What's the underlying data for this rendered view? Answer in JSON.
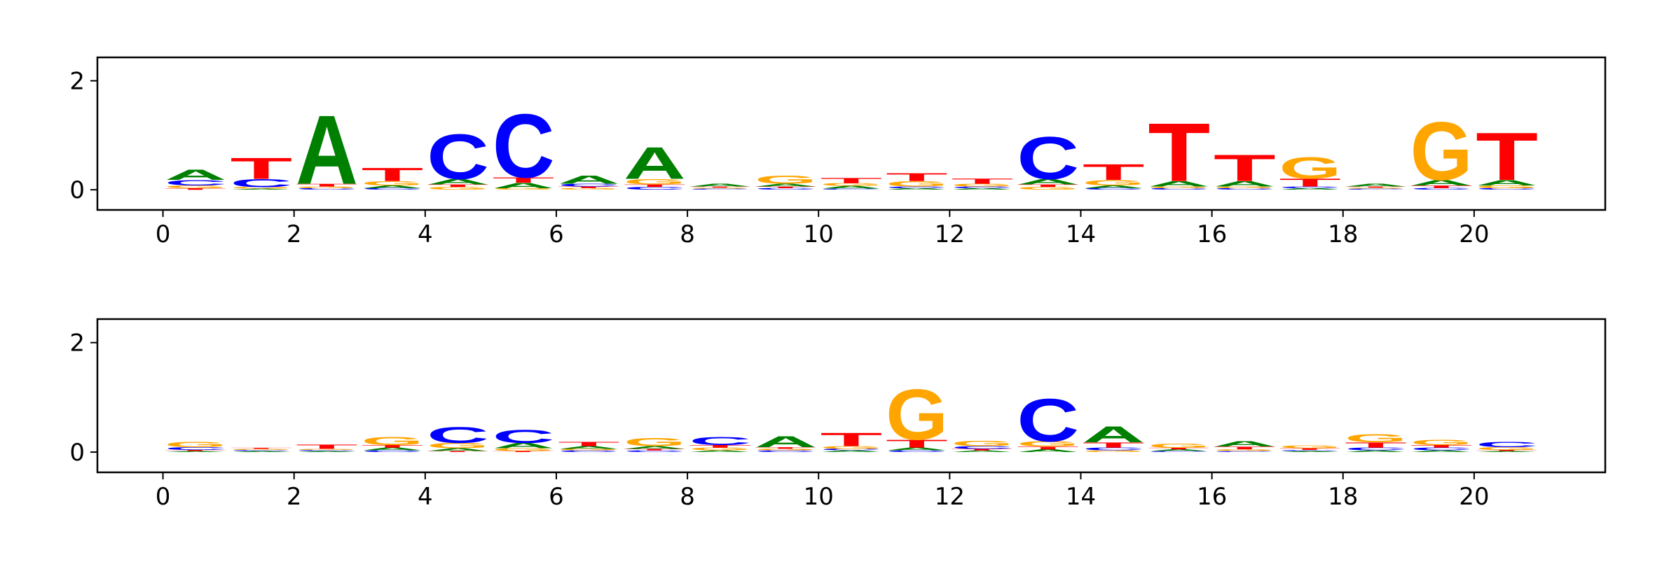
{
  "chart_data": [
    {
      "type": "logo",
      "x": [
        0.5,
        1.5,
        2.5,
        3.5,
        4.5,
        5.5,
        6.5,
        7.5,
        8.5,
        9.5,
        10.5,
        11.5,
        12.5,
        13.5,
        14.5,
        15.5,
        16.5,
        17.5,
        18.5,
        19.5,
        20.5
      ],
      "xlim": [
        -1,
        22
      ],
      "xticks": [
        0,
        2,
        4,
        6,
        8,
        10,
        12,
        14,
        16,
        18,
        20
      ],
      "ylim": [
        -0.37,
        2.43
      ],
      "yticks": [
        0,
        2
      ],
      "series": [
        {
          "name": "A",
          "color": "#008000",
          "values": [
            0.2,
            0.02,
            1.3,
            0.05,
            0.1,
            0.1,
            0.15,
            0.6,
            0.05,
            0.05,
            0.05,
            0.03,
            0.03,
            0.1,
            0.05,
            0.1,
            0.1,
            0.03,
            0.05,
            0.1,
            0.1
          ]
        },
        {
          "name": "C",
          "color": "#0000ff",
          "values": [
            0.1,
            0.15,
            0.03,
            0.03,
            0.85,
            1.2,
            0.05,
            0.05,
            0.02,
            0.03,
            0.02,
            0.03,
            0.03,
            0.8,
            0.03,
            0.03,
            0.03,
            0.03,
            0.02,
            0.03,
            0.03
          ]
        },
        {
          "name": "G",
          "color": "#ffa500",
          "values": [
            0.05,
            0.03,
            0.03,
            0.08,
            0.05,
            0.03,
            0.03,
            0.1,
            0.02,
            0.15,
            0.05,
            0.1,
            0.05,
            0.05,
            0.1,
            0.03,
            0.03,
            0.4,
            0.02,
            1.1,
            0.05
          ]
        },
        {
          "name": "T",
          "color": "#ff0000",
          "values": [
            0.03,
            0.4,
            0.05,
            0.25,
            0.05,
            0.1,
            0.03,
            0.05,
            0.02,
            0.03,
            0.1,
            0.15,
            0.1,
            0.05,
            0.3,
            1.1,
            0.5,
            0.15,
            0.02,
            0.05,
            0.9
          ]
        }
      ]
    },
    {
      "type": "logo",
      "x": [
        0.5,
        1.5,
        2.5,
        3.5,
        4.5,
        5.5,
        6.5,
        7.5,
        8.5,
        9.5,
        10.5,
        11.5,
        12.5,
        13.5,
        14.5,
        15.5,
        16.5,
        17.5,
        18.5,
        19.5,
        20.5
      ],
      "xlim": [
        -1,
        22
      ],
      "xticks": [
        0,
        2,
        4,
        6,
        8,
        10,
        12,
        14,
        16,
        18,
        20
      ],
      "ylim": [
        -0.37,
        2.43
      ],
      "yticks": [
        0,
        2
      ],
      "series": [
        {
          "name": "A",
          "color": "#008000",
          "values": [
            0.02,
            0.02,
            0.02,
            0.05,
            0.05,
            0.1,
            0.05,
            0.05,
            0.03,
            0.2,
            0.03,
            0.05,
            0.03,
            0.05,
            0.3,
            0.03,
            0.1,
            0.02,
            0.03,
            0.03,
            0.02
          ]
        },
        {
          "name": "C",
          "color": "#0000ff",
          "values": [
            0.05,
            0.02,
            0.02,
            0.03,
            0.3,
            0.25,
            0.03,
            0.03,
            0.15,
            0.03,
            0.03,
            0.03,
            0.05,
            0.8,
            0.05,
            0.02,
            0.02,
            0.02,
            0.05,
            0.05,
            0.1
          ]
        },
        {
          "name": "G",
          "color": "#ffa500",
          "values": [
            0.1,
            0.02,
            0.02,
            0.15,
            0.1,
            0.05,
            0.03,
            0.15,
            0.05,
            0.03,
            0.05,
            0.95,
            0.1,
            0.1,
            0.03,
            0.08,
            0.03,
            0.05,
            0.15,
            0.1,
            0.05
          ]
        },
        {
          "name": "T",
          "color": "#ff0000",
          "values": [
            0.02,
            0.02,
            0.08,
            0.05,
            0.02,
            0.02,
            0.08,
            0.03,
            0.05,
            0.03,
            0.25,
            0.15,
            0.03,
            0.05,
            0.1,
            0.03,
            0.05,
            0.03,
            0.1,
            0.05,
            0.02
          ]
        }
      ]
    }
  ]
}
